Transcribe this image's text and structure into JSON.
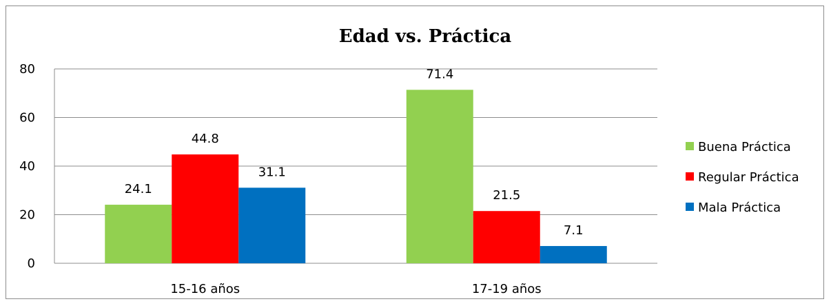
{
  "chart_data": {
    "type": "bar",
    "title": "Edad vs. Práctica",
    "xlabel": "",
    "ylabel": "",
    "categories": [
      "15-16 años",
      "17-19 años"
    ],
    "series": [
      {
        "name": "Buena Práctica",
        "color": "#92d050",
        "values": [
          24.1,
          71.4
        ],
        "labels": [
          "24.1",
          "71.4"
        ]
      },
      {
        "name": "Regular Práctica",
        "color": "#ff0000",
        "values": [
          44.8,
          21.5
        ],
        "labels": [
          "44.8",
          "21.5"
        ]
      },
      {
        "name": "Mala Práctica",
        "color": "#0070c0",
        "values": [
          31.1,
          7.1
        ],
        "labels": [
          "31.1",
          "7.1"
        ]
      }
    ],
    "ylim": [
      0,
      80
    ],
    "yticks": [
      0,
      20,
      40,
      60,
      80
    ],
    "grid": true,
    "legend_position": "right"
  }
}
